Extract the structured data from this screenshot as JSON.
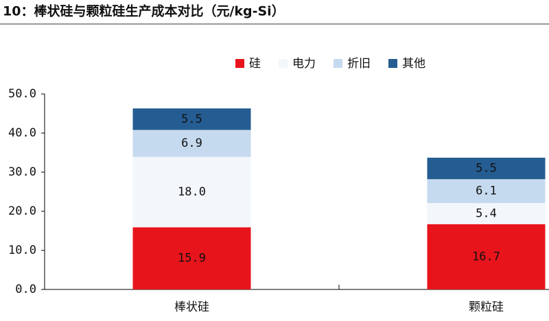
{
  "chart_data": {
    "type": "stacked-bar",
    "title": "10：棒状硅与颗粒硅生产成本对比（元/kg-Si）",
    "categories": [
      "棒状硅",
      "颗粒硅"
    ],
    "series": [
      {
        "name": "硅",
        "color": "#e8141c",
        "values": [
          15.9,
          16.7
        ],
        "value_labels": [
          "15.9",
          "16.7"
        ]
      },
      {
        "name": "电力",
        "color": "#f3f6fb",
        "values": [
          18.0,
          5.4
        ],
        "value_labels": [
          "18.0",
          "5.4"
        ]
      },
      {
        "name": "折旧",
        "color": "#c6daef",
        "values": [
          6.9,
          6.1
        ],
        "value_labels": [
          "6.9",
          "6.1"
        ]
      },
      {
        "name": "其他",
        "color": "#255d92",
        "values": [
          5.5,
          5.5
        ],
        "value_labels": [
          "5.5",
          "5.5"
        ]
      }
    ],
    "ylim": [
      0,
      50
    ],
    "yticks": [
      {
        "value": 0,
        "label": "0.0"
      },
      {
        "value": 10,
        "label": "10.0"
      },
      {
        "value": 20,
        "label": "20.0"
      },
      {
        "value": 30,
        "label": "30.0"
      },
      {
        "value": 40,
        "label": "40.0"
      },
      {
        "value": 50,
        "label": "50.0"
      }
    ],
    "grid": false,
    "legend": "top"
  }
}
